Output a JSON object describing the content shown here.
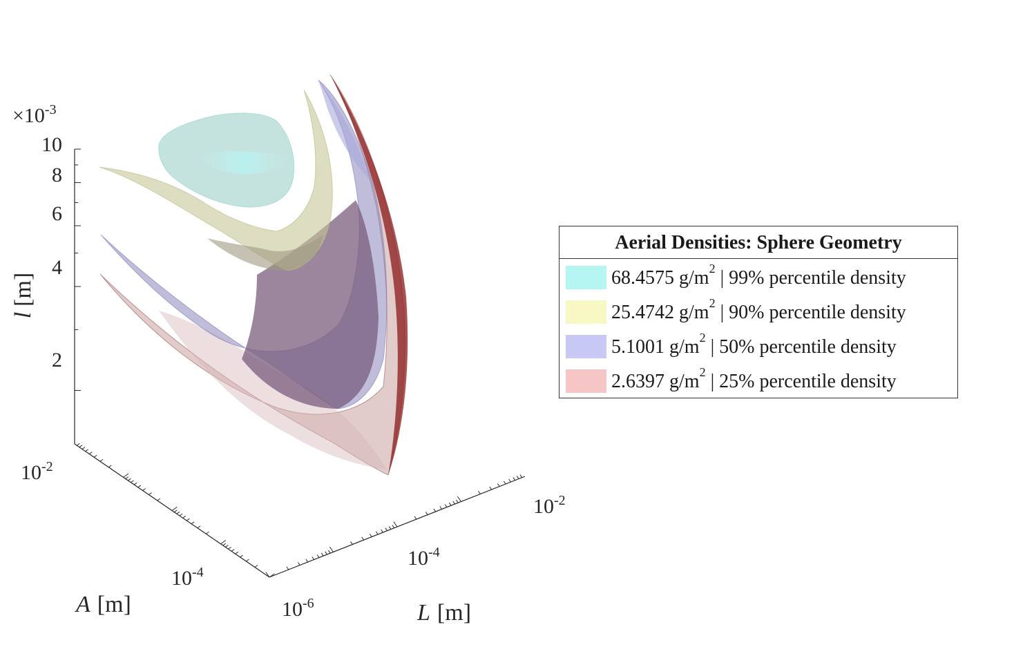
{
  "chart_data": {
    "type": "area",
    "title": "",
    "scale_multiplier": {
      "base": "×10",
      "exp": "-3"
    },
    "xlabel": {
      "symbol": "L",
      "unit": "[m]"
    },
    "ylabel": {
      "symbol": "A",
      "unit": "[m]"
    },
    "zlabel": {
      "symbol": "l",
      "unit": "[m]"
    },
    "x_ticks": [
      {
        "base": "10",
        "exp": "-6"
      },
      {
        "base": "10",
        "exp": "-4"
      },
      {
        "base": "10",
        "exp": "-2"
      }
    ],
    "y_ticks": [
      {
        "base": "10",
        "exp": "-4"
      },
      {
        "base": "10",
        "exp": "-2"
      }
    ],
    "z_ticks": [
      "10",
      "8",
      "6",
      "4",
      "2"
    ],
    "z_tick_values": [
      10,
      8,
      6,
      4,
      2
    ],
    "z_scale": "log",
    "z_range": [
      1.4,
      10
    ],
    "legend": {
      "title": "Aerial Densities: Sphere Geometry",
      "placement": "right",
      "entries": [
        {
          "value": "68.4575",
          "unit": "g/m",
          "unit_exp": "2",
          "desc": "| 99% percentile density",
          "color": "#b6f6f2"
        },
        {
          "value": "25.4742",
          "unit": "g/m",
          "unit_exp": "2",
          "desc": "| 90% percentile density",
          "color": "#f8f8c4"
        },
        {
          "value": "5.1001",
          "unit": "g/m",
          "unit_exp": "2",
          "desc": "| 50% percentile density",
          "color": "#c8c8f4"
        },
        {
          "value": "2.6397",
          "unit": "g/m",
          "unit_exp": "2",
          "desc": "| 25% percentile density",
          "color": "#f6c6c6"
        }
      ]
    },
    "series": [
      {
        "name": "68.4575 g/m2",
        "density": 68.4575,
        "percentile": 99,
        "face_color": "#a6dcd6",
        "edge_color": "#7ec9c4"
      },
      {
        "name": "25.4742 g/m2",
        "density": 25.4742,
        "percentile": 90,
        "face_color": "#cfd0a0",
        "edge_color": "#b8b870"
      },
      {
        "name": "5.1001 g/m2",
        "density": 5.1001,
        "percentile": 50,
        "face_color": "#8c8cc0",
        "edge_color": "#6a6ab4"
      },
      {
        "name": "2.6397 g/m2",
        "density": 2.6397,
        "percentile": 25,
        "face_color": "#b48c8c",
        "edge_color": "#8b1a1a"
      }
    ],
    "grid": false
  }
}
